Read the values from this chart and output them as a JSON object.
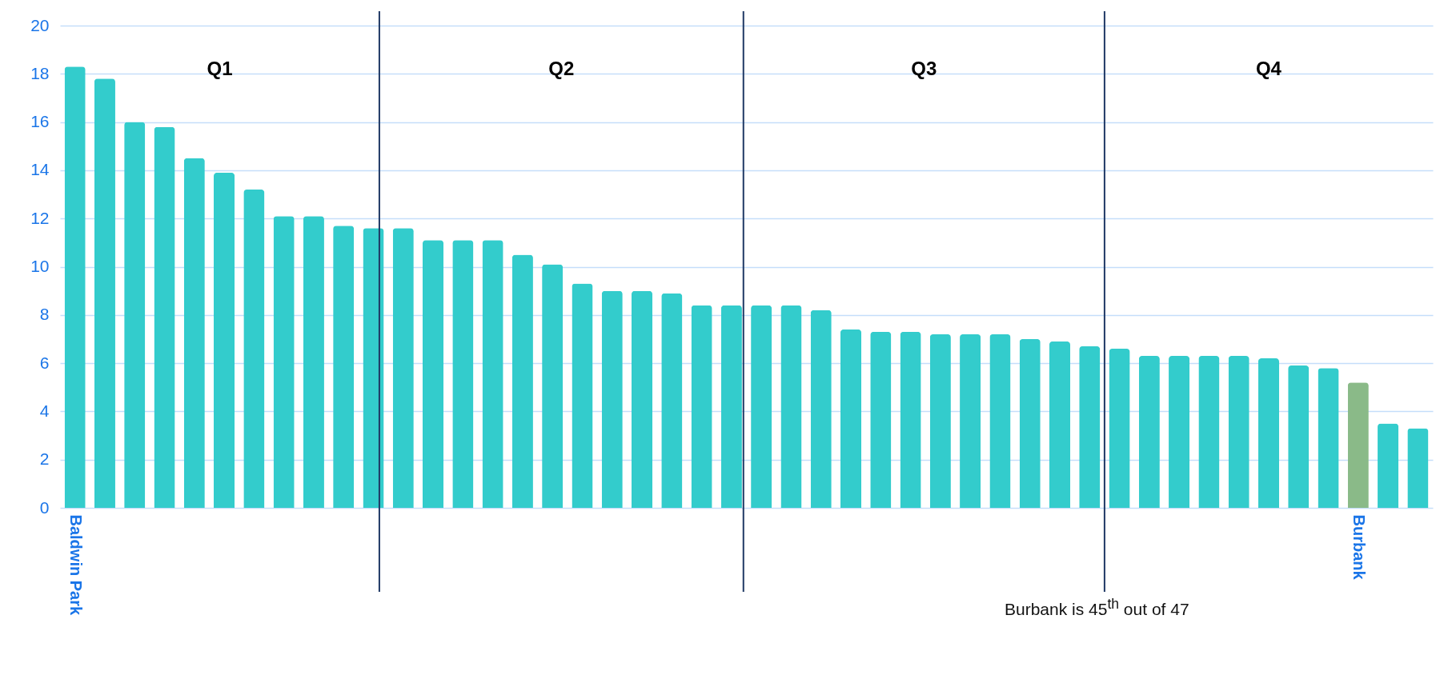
{
  "chart_data": {
    "type": "bar",
    "categories": [
      "Baldwin Park",
      null,
      null,
      null,
      null,
      null,
      null,
      null,
      null,
      null,
      null,
      null,
      null,
      null,
      null,
      null,
      null,
      null,
      null,
      null,
      null,
      null,
      null,
      null,
      null,
      null,
      null,
      null,
      null,
      null,
      null,
      null,
      null,
      null,
      null,
      null,
      null,
      null,
      null,
      null,
      null,
      null,
      null,
      "Burbank",
      null,
      null
    ],
    "values": [
      18.3,
      17.8,
      16.0,
      15.8,
      14.5,
      13.9,
      13.2,
      12.1,
      12.1,
      11.7,
      11.6,
      11.6,
      11.1,
      11.1,
      11.1,
      10.5,
      10.1,
      9.3,
      9.0,
      9.0,
      8.9,
      8.4,
      8.4,
      8.4,
      8.4,
      8.2,
      7.4,
      7.3,
      7.3,
      7.2,
      7.2,
      7.2,
      7.0,
      6.9,
      6.7,
      6.6,
      6.3,
      6.3,
      6.3,
      6.3,
      6.2,
      5.9,
      5.8,
      5.2,
      3.5,
      3.3
    ],
    "colors": [
      "#33cccc",
      "#33cccc",
      "#33cccc",
      "#33cccc",
      "#33cccc",
      "#33cccc",
      "#33cccc",
      "#33cccc",
      "#33cccc",
      "#33cccc",
      "#33cccc",
      "#33cccc",
      "#33cccc",
      "#33cccc",
      "#33cccc",
      "#33cccc",
      "#33cccc",
      "#33cccc",
      "#33cccc",
      "#33cccc",
      "#33cccc",
      "#33cccc",
      "#33cccc",
      "#33cccc",
      "#33cccc",
      "#33cccc",
      "#33cccc",
      "#33cccc",
      "#33cccc",
      "#33cccc",
      "#33cccc",
      "#33cccc",
      "#33cccc",
      "#33cccc",
      "#33cccc",
      "#33cccc",
      "#33cccc",
      "#33cccc",
      "#33cccc",
      "#33cccc",
      "#33cccc",
      "#33cccc",
      "#33cccc",
      "#8aba88",
      "#33cccc",
      "#33cccc"
    ],
    "ylim": [
      0,
      20
    ],
    "yticks": [
      0,
      2,
      4,
      6,
      8,
      10,
      12,
      14,
      16,
      18,
      20
    ],
    "grid": "y",
    "annotations": [
      "Q1",
      "Q2",
      "Q3",
      "Q4",
      "Burbank is 45$^{th}$ out of 47"
    ]
  }
}
